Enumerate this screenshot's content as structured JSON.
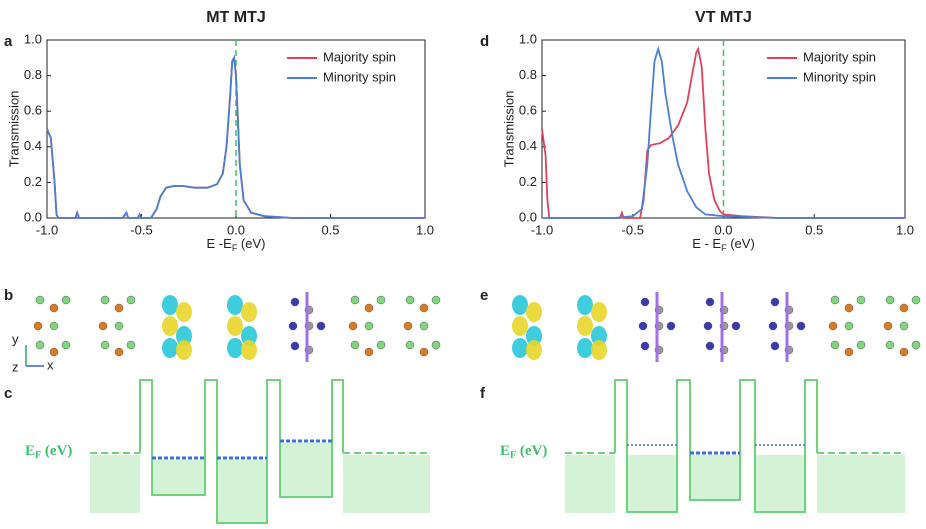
{
  "chart_data": [
    {
      "type": "line",
      "panel_label": "a",
      "title": "MT MTJ",
      "x_label": [
        "E -E",
        "F",
        " (eV)"
      ],
      "y_label": "Transmission",
      "xlim": [
        -1,
        1
      ],
      "ylim": [
        0,
        1
      ],
      "xticks": [
        {
          "value": -1,
          "label": "-1.0"
        },
        {
          "value": -0.5,
          "label": "-0.5"
        },
        {
          "value": 0,
          "label": "0.0"
        },
        {
          "value": 0.5,
          "label": "0.5"
        },
        {
          "value": 1,
          "label": "1.0"
        }
      ],
      "yticks": [
        {
          "value": 0,
          "label": "0.0"
        },
        {
          "value": 0.2,
          "label": "0.2"
        },
        {
          "value": 0.4,
          "label": "0.4"
        },
        {
          "value": 0.6,
          "label": "0.6"
        },
        {
          "value": 0.8,
          "label": "0.8"
        },
        {
          "value": 1,
          "label": "1.0"
        }
      ],
      "vline": 0,
      "legend": "upper right",
      "series": [
        {
          "name": "Majority spin",
          "color": "#e0415a",
          "x": [
            -1,
            -0.98,
            -0.96,
            -0.95,
            -0.94,
            -0.85,
            -0.84,
            -0.83,
            -0.6,
            -0.58,
            -0.57,
            -0.52,
            -0.51,
            -0.5,
            -0.45,
            -0.42,
            -0.4,
            -0.37,
            -0.33,
            -0.28,
            -0.22,
            -0.15,
            -0.1,
            -0.07,
            -0.05,
            -0.03,
            -0.02,
            -0.01,
            0,
            0.02,
            0.04,
            0.08,
            0.15,
            0.3,
            1
          ],
          "values": [
            0.5,
            0.45,
            0.2,
            0.02,
            0,
            0,
            0.03,
            0,
            0,
            0.03,
            0,
            0,
            0.02,
            0,
            0,
            0.05,
            0.12,
            0.17,
            0.18,
            0.18,
            0.17,
            0.17,
            0.19,
            0.25,
            0.4,
            0.7,
            0.88,
            0.9,
            0.8,
            0.3,
            0.1,
            0.03,
            0.01,
            0,
            0
          ]
        },
        {
          "name": "Minority spin",
          "color": "#4a7fd6",
          "x": [
            -1,
            -0.98,
            -0.96,
            -0.95,
            -0.94,
            -0.85,
            -0.84,
            -0.83,
            -0.6,
            -0.58,
            -0.57,
            -0.52,
            -0.51,
            -0.5,
            -0.45,
            -0.42,
            -0.4,
            -0.37,
            -0.33,
            -0.28,
            -0.22,
            -0.15,
            -0.1,
            -0.07,
            -0.05,
            -0.03,
            -0.02,
            -0.01,
            0,
            0.02,
            0.04,
            0.08,
            0.15,
            0.3,
            1
          ],
          "values": [
            0.5,
            0.45,
            0.2,
            0.02,
            0,
            0,
            0.03,
            0,
            0,
            0.03,
            0,
            0,
            0.02,
            0,
            0,
            0.05,
            0.12,
            0.17,
            0.18,
            0.18,
            0.17,
            0.17,
            0.19,
            0.25,
            0.4,
            0.7,
            0.88,
            0.9,
            0.8,
            0.3,
            0.1,
            0.03,
            0.01,
            0,
            0
          ]
        }
      ]
    },
    {
      "type": "line",
      "panel_label": "d",
      "title": "VT MTJ",
      "x_label": [
        "E - E",
        "F",
        " (eV)"
      ],
      "y_label": "Transmission",
      "xlim": [
        -1,
        1
      ],
      "ylim": [
        0,
        1
      ],
      "xticks": [
        {
          "value": -1,
          "label": "-1.0"
        },
        {
          "value": -0.5,
          "label": "-0.5"
        },
        {
          "value": 0,
          "label": "0.0"
        },
        {
          "value": 0.5,
          "label": "0.5"
        },
        {
          "value": 1,
          "label": "1.0"
        }
      ],
      "yticks": [
        {
          "value": 0,
          "label": "0.0"
        },
        {
          "value": 0.2,
          "label": "0.2"
        },
        {
          "value": 0.4,
          "label": "0.4"
        },
        {
          "value": 0.6,
          "label": "0.6"
        },
        {
          "value": 0.8,
          "label": "0.8"
        },
        {
          "value": 1,
          "label": "1.0"
        }
      ],
      "vline": 0,
      "legend": "upper right",
      "series": [
        {
          "name": "Majority spin",
          "color": "#e0415a",
          "x": [
            -1,
            -0.98,
            -0.97,
            -0.96,
            -0.57,
            -0.56,
            -0.55,
            -0.46,
            -0.44,
            -0.42,
            -0.4,
            -0.35,
            -0.3,
            -0.25,
            -0.2,
            -0.17,
            -0.15,
            -0.14,
            -0.12,
            -0.1,
            -0.08,
            -0.05,
            -0.02,
            0,
            0.1,
            0.3,
            1
          ],
          "values": [
            0.5,
            0.35,
            0.1,
            0,
            0,
            0.03,
            0,
            0,
            0.1,
            0.38,
            0.41,
            0.42,
            0.45,
            0.52,
            0.65,
            0.82,
            0.93,
            0.95,
            0.85,
            0.5,
            0.25,
            0.1,
            0.04,
            0.02,
            0.01,
            0,
            0
          ]
        },
        {
          "name": "Minority spin",
          "color": "#4a7fd6",
          "x": [
            -1,
            -0.6,
            -0.5,
            -0.45,
            -0.42,
            -0.4,
            -0.38,
            -0.36,
            -0.34,
            -0.32,
            -0.28,
            -0.25,
            -0.2,
            -0.15,
            -0.1,
            0,
            0.3,
            1
          ],
          "values": [
            0,
            0,
            0.01,
            0.05,
            0.3,
            0.6,
            0.88,
            0.95,
            0.88,
            0.7,
            0.45,
            0.3,
            0.15,
            0.06,
            0.02,
            0.01,
            0,
            0
          ]
        }
      ]
    }
  ],
  "structure_panels": [
    {
      "label": "b"
    },
    {
      "label": "e"
    }
  ],
  "axis_triad": [
    "y",
    "z",
    "x"
  ],
  "band_panels": [
    {
      "label": "c",
      "ef_label": [
        "E",
        "F",
        " (eV)"
      ]
    },
    {
      "label": "f",
      "ef_label": [
        "E",
        "F",
        " (eV)"
      ]
    }
  ]
}
